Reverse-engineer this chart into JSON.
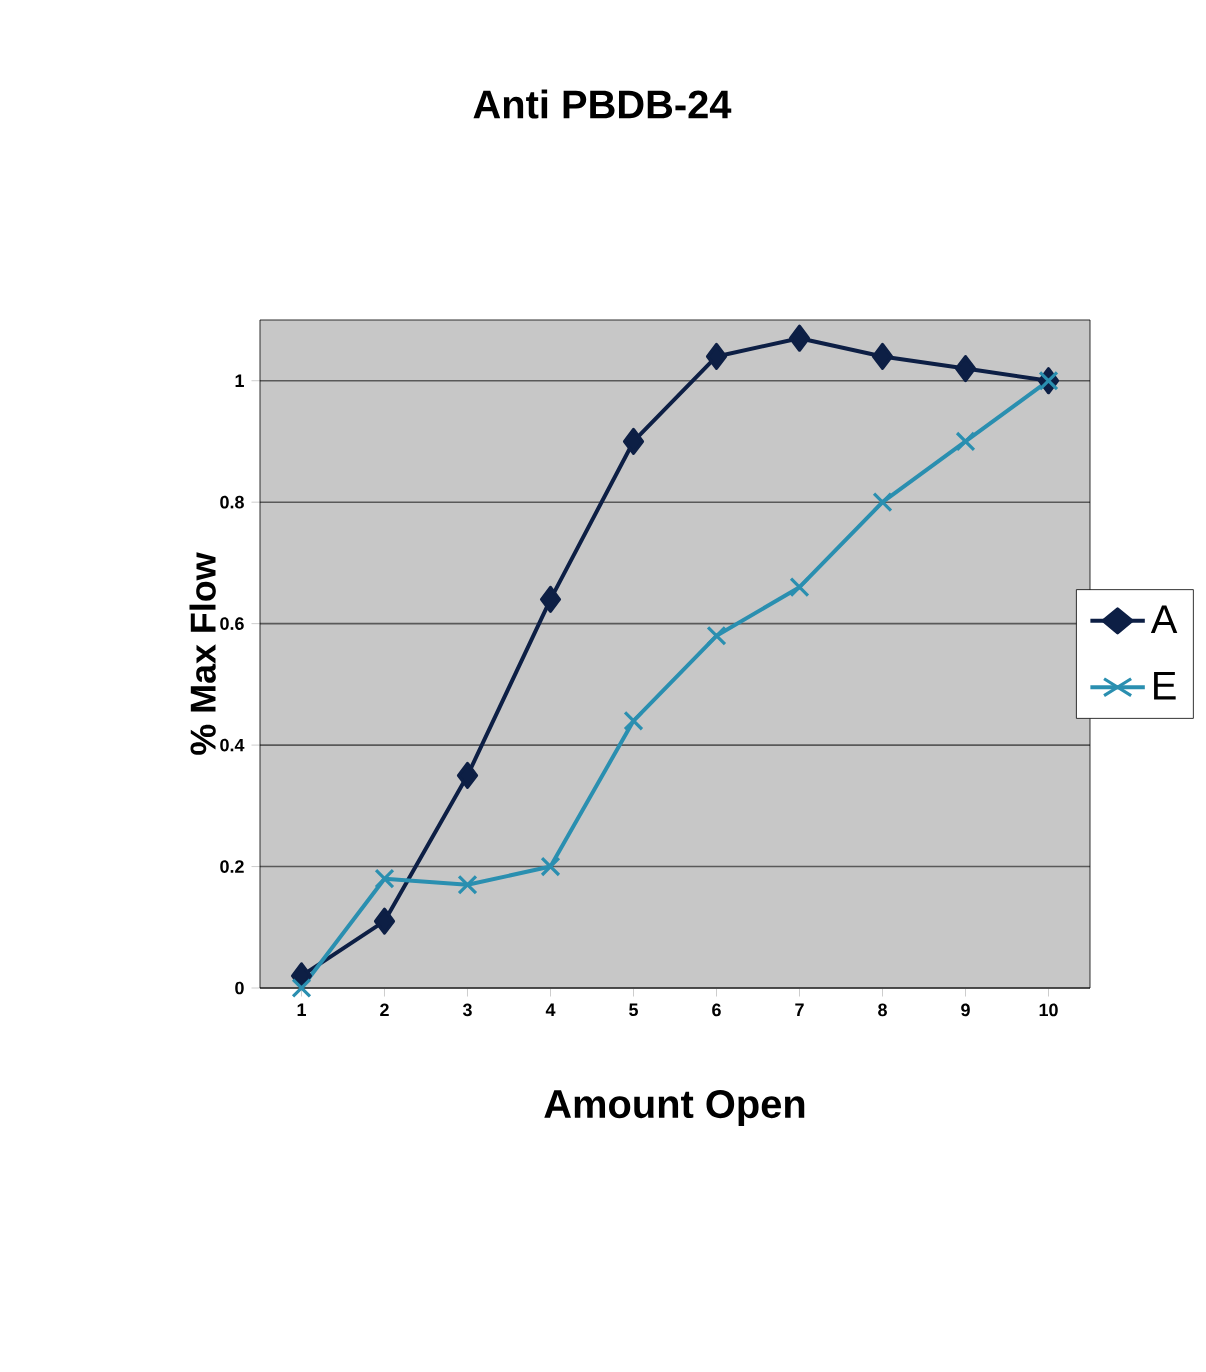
{
  "chart_data": {
    "type": "line",
    "title": "Anti PBDB-24",
    "xlabel": "Amount Open",
    "ylabel": "% Max Flow",
    "categories": [
      "1",
      "2",
      "3",
      "4",
      "5",
      "6",
      "7",
      "8",
      "9",
      "10"
    ],
    "series": [
      {
        "name": "A",
        "color": "#0d1f45",
        "marker": "diamond",
        "values": [
          0.02,
          0.11,
          0.35,
          0.64,
          0.9,
          1.04,
          1.07,
          1.04,
          1.02,
          1.0
        ]
      },
      {
        "name": "E",
        "color": "#2a8fb0",
        "marker": "cross",
        "values": [
          0,
          0.18,
          0.17,
          0.2,
          0.44,
          0.58,
          0.66,
          0.8,
          0.9,
          1.0
        ]
      }
    ],
    "ylim": [
      0,
      1.1
    ],
    "yticks": [
      0,
      0.2,
      0.4,
      0.6,
      0.8,
      1
    ],
    "grid": "y",
    "legend": "right",
    "line_style": "solid"
  }
}
